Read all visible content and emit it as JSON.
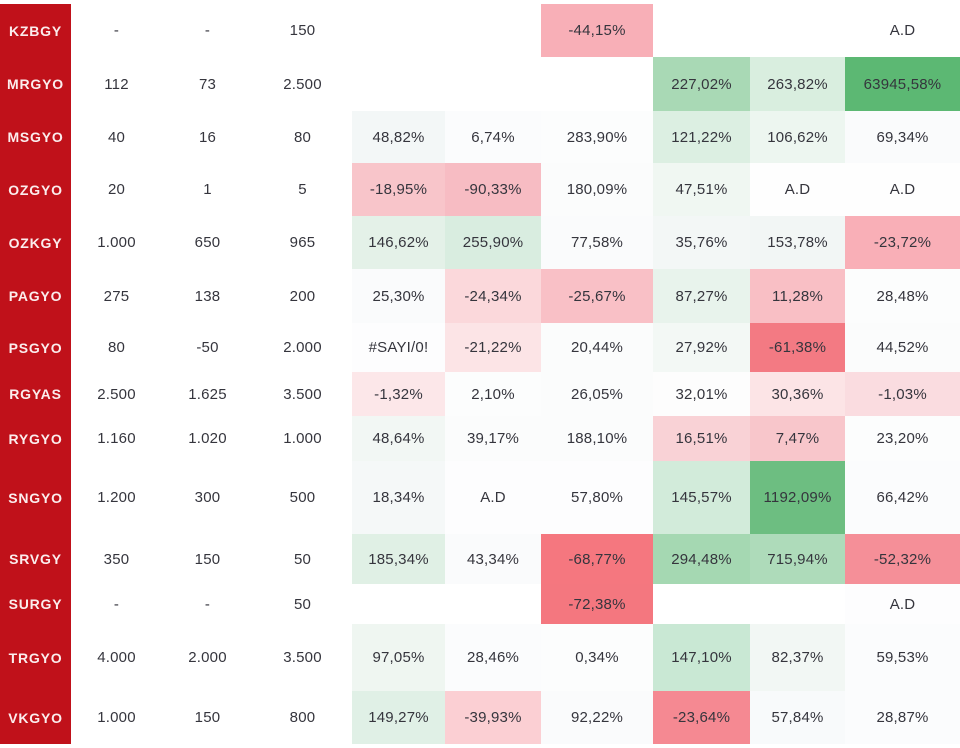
{
  "colors": {
    "ticker_bg": "#C0111A",
    "ticker_text": "#FBEDED",
    "cell_text": "#35353D",
    "page_bg": "#FFFFFF",
    "positive_strong": "#5CB873",
    "negative_strong": "#F4777F"
  },
  "chart_data": {
    "type": "table",
    "subtype": "heatmap-conditional-formatting",
    "grid": false,
    "legend": "none",
    "ticker_column": [
      "KZBGY",
      "MRGYO",
      "MSGYO",
      "OZGYO",
      "OZKGY",
      "PAGYO",
      "PSGYO",
      "RGYAS",
      "RYGYO",
      "SNGYO",
      "SRVGY",
      "SURGY",
      "TRGYO",
      "VKGYO"
    ],
    "rows": [
      {
        "ticker": "KZBGY",
        "cells": [
          {
            "text": "-",
            "bg": "#FFFFFF"
          },
          {
            "text": "-",
            "bg": "#FFFFFF"
          },
          {
            "text": "150",
            "bg": "#FFFFFF"
          },
          {
            "text": "",
            "bg": "#FFFFFF"
          },
          {
            "text": "",
            "bg": "#FFFFFF"
          },
          {
            "text": "-44,15%",
            "bg": "#F8AFB7"
          },
          {
            "text": "",
            "bg": "#FFFFFF"
          },
          {
            "text": "",
            "bg": "#FFFFFF"
          },
          {
            "text": "A.D",
            "bg": "#FFFFFF"
          }
        ]
      },
      {
        "ticker": "MRGYO",
        "cells": [
          {
            "text": "112",
            "bg": "#FFFFFF"
          },
          {
            "text": "73",
            "bg": "#FFFFFF"
          },
          {
            "text": "2.500",
            "bg": "#FFFFFF"
          },
          {
            "text": "",
            "bg": "#FFFFFF"
          },
          {
            "text": "",
            "bg": "#FFFFFF"
          },
          {
            "text": "",
            "bg": "#FFFFFF"
          },
          {
            "text": "227,02%",
            "bg": "#A9D9B5"
          },
          {
            "text": "263,82%",
            "bg": "#D9EEDF"
          },
          {
            "text": "63945,58%",
            "bg": "#5CB873"
          }
        ]
      },
      {
        "ticker": "MSGYO",
        "cells": [
          {
            "text": "40",
            "bg": "#FFFFFF"
          },
          {
            "text": "16",
            "bg": "#FFFFFF"
          },
          {
            "text": "80",
            "bg": "#FFFFFF"
          },
          {
            "text": "48,82%",
            "bg": "#F3F7F7"
          },
          {
            "text": "6,74%",
            "bg": "#FBFCFD"
          },
          {
            "text": "283,90%",
            "bg": "#FCFDFD"
          },
          {
            "text": "121,22%",
            "bg": "#DCEFE2"
          },
          {
            "text": "106,62%",
            "bg": "#EDF6F0"
          },
          {
            "text": "69,34%",
            "bg": "#FAFBFC"
          }
        ]
      },
      {
        "ticker": "OZGYO",
        "cells": [
          {
            "text": "20",
            "bg": "#FFFFFF"
          },
          {
            "text": "1",
            "bg": "#FFFFFF"
          },
          {
            "text": "5",
            "bg": "#FFFFFF"
          },
          {
            "text": "-18,95%",
            "bg": "#F8C5CA"
          },
          {
            "text": "-90,33%",
            "bg": "#F7BCC3"
          },
          {
            "text": "180,09%",
            "bg": "#FBFCFC"
          },
          {
            "text": "47,51%",
            "bg": "#F0F7F2"
          },
          {
            "text": "A.D",
            "bg": "#FEFEFE"
          },
          {
            "text": "A.D",
            "bg": "#FEFEFE"
          }
        ]
      },
      {
        "ticker": "OZKGY",
        "cells": [
          {
            "text": "1.000",
            "bg": "#FFFFFF"
          },
          {
            "text": "650",
            "bg": "#FFFFFF"
          },
          {
            "text": "965",
            "bg": "#FFFFFF"
          },
          {
            "text": "146,62%",
            "bg": "#E4F1E8"
          },
          {
            "text": "255,90%",
            "bg": "#D9EDE0"
          },
          {
            "text": "77,58%",
            "bg": "#FAFBFC"
          },
          {
            "text": "35,76%",
            "bg": "#F3F7F6"
          },
          {
            "text": "153,78%",
            "bg": "#F2F6F5"
          },
          {
            "text": "-23,72%",
            "bg": "#F9AFB7"
          }
        ]
      },
      {
        "ticker": "PAGYO",
        "cells": [
          {
            "text": "275",
            "bg": "#FFFFFF"
          },
          {
            "text": "138",
            "bg": "#FFFFFF"
          },
          {
            "text": "200",
            "bg": "#FFFFFF"
          },
          {
            "text": "25,30%",
            "bg": "#FAFBFC"
          },
          {
            "text": "-24,34%",
            "bg": "#FBD8DB"
          },
          {
            "text": "-25,67%",
            "bg": "#F9C0C6"
          },
          {
            "text": "87,27%",
            "bg": "#E8F3EC"
          },
          {
            "text": "11,28%",
            "bg": "#F9BFC5"
          },
          {
            "text": "28,48%",
            "bg": "#FCFDFD"
          }
        ]
      },
      {
        "ticker": "PSGYO",
        "cells": [
          {
            "text": "80",
            "bg": "#FFFFFF"
          },
          {
            "text": "-50",
            "bg": "#FFFFFF"
          },
          {
            "text": "2.000",
            "bg": "#FFFFFF"
          },
          {
            "text": "#SAYI/0!",
            "bg": "#FDFDFE"
          },
          {
            "text": "-21,22%",
            "bg": "#FCE4E6"
          },
          {
            "text": "20,44%",
            "bg": "#FBFCFC"
          },
          {
            "text": "27,92%",
            "bg": "#F3F8F5"
          },
          {
            "text": "-61,38%",
            "bg": "#F37A83"
          },
          {
            "text": "44,52%",
            "bg": "#FBFCFC"
          }
        ]
      },
      {
        "ticker": "RGYAS",
        "cells": [
          {
            "text": "2.500",
            "bg": "#FFFFFF"
          },
          {
            "text": "1.625",
            "bg": "#FFFFFF"
          },
          {
            "text": "3.500",
            "bg": "#FFFFFF"
          },
          {
            "text": "-1,32%",
            "bg": "#FCE7E9"
          },
          {
            "text": "2,10%",
            "bg": "#FCFDFD"
          },
          {
            "text": "26,05%",
            "bg": "#FBFCFC"
          },
          {
            "text": "32,01%",
            "bg": "#FDFDFD"
          },
          {
            "text": "30,36%",
            "bg": "#FCE4E6"
          },
          {
            "text": "-1,03%",
            "bg": "#FADCE0"
          }
        ]
      },
      {
        "ticker": "RYGYO",
        "cells": [
          {
            "text": "1.160",
            "bg": "#FFFFFF"
          },
          {
            "text": "1.020",
            "bg": "#FFFFFF"
          },
          {
            "text": "1.000",
            "bg": "#FFFFFF"
          },
          {
            "text": "48,64%",
            "bg": "#F2F7F4"
          },
          {
            "text": "39,17%",
            "bg": "#FBFCFC"
          },
          {
            "text": "188,10%",
            "bg": "#FBFCFC"
          },
          {
            "text": "16,51%",
            "bg": "#F9D2D6"
          },
          {
            "text": "7,47%",
            "bg": "#F8C6CB"
          },
          {
            "text": "23,20%",
            "bg": "#FCFDFD"
          }
        ]
      },
      {
        "ticker": "SNGYO",
        "cells": [
          {
            "text": "1.200",
            "bg": "#FFFFFF"
          },
          {
            "text": "300",
            "bg": "#FFFFFF"
          },
          {
            "text": "500",
            "bg": "#FFFFFF"
          },
          {
            "text": "18,34%",
            "bg": "#F5F8F8"
          },
          {
            "text": "A.D",
            "bg": "#FDFDFE"
          },
          {
            "text": "57,80%",
            "bg": "#FDFDFE"
          },
          {
            "text": "145,57%",
            "bg": "#D2EBDA"
          },
          {
            "text": "1192,09%",
            "bg": "#6DBE81"
          },
          {
            "text": "66,42%",
            "bg": "#FBFCFD"
          }
        ]
      },
      {
        "ticker": "SRVGY",
        "cells": [
          {
            "text": "350",
            "bg": "#FFFFFF"
          },
          {
            "text": "150",
            "bg": "#FFFFFF"
          },
          {
            "text": "50",
            "bg": "#FFFFFF"
          },
          {
            "text": "185,34%",
            "bg": "#E0F0E5"
          },
          {
            "text": "43,34%",
            "bg": "#FAFBFC"
          },
          {
            "text": "-68,77%",
            "bg": "#F5777F"
          },
          {
            "text": "294,48%",
            "bg": "#A5D8B2"
          },
          {
            "text": "715,94%",
            "bg": "#AEDBBA"
          },
          {
            "text": "-52,32%",
            "bg": "#F58F98"
          }
        ]
      },
      {
        "ticker": "SURGY",
        "cells": [
          {
            "text": "-",
            "bg": "#FFFFFF"
          },
          {
            "text": "-",
            "bg": "#FFFFFF"
          },
          {
            "text": "50",
            "bg": "#FFFFFF"
          },
          {
            "text": "",
            "bg": "#FFFFFF"
          },
          {
            "text": "",
            "bg": "#FFFFFF"
          },
          {
            "text": "-72,38%",
            "bg": "#F4777F"
          },
          {
            "text": "",
            "bg": "#FFFFFF"
          },
          {
            "text": "",
            "bg": "#FFFFFF"
          },
          {
            "text": "A.D",
            "bg": "#FDFDFE"
          }
        ]
      },
      {
        "ticker": "TRGYO",
        "cells": [
          {
            "text": "4.000",
            "bg": "#FFFFFF"
          },
          {
            "text": "2.000",
            "bg": "#FFFFFF"
          },
          {
            "text": "3.500",
            "bg": "#FFFFFF"
          },
          {
            "text": "97,05%",
            "bg": "#EFF6F1"
          },
          {
            "text": "28,46%",
            "bg": "#FBFCFD"
          },
          {
            "text": "0,34%",
            "bg": "#FCFDFD"
          },
          {
            "text": "147,10%",
            "bg": "#C9E8D4"
          },
          {
            "text": "82,37%",
            "bg": "#F2F7F4"
          },
          {
            "text": "59,53%",
            "bg": "#FBFCFD"
          }
        ]
      },
      {
        "ticker": "VKGYO",
        "cells": [
          {
            "text": "1.000",
            "bg": "#FFFFFF"
          },
          {
            "text": "150",
            "bg": "#FFFFFF"
          },
          {
            "text": "800",
            "bg": "#FFFFFF"
          },
          {
            "text": "149,27%",
            "bg": "#E0F0E6"
          },
          {
            "text": "-39,93%",
            "bg": "#FBCFD3"
          },
          {
            "text": "92,22%",
            "bg": "#FAFBFC"
          },
          {
            "text": "-23,64%",
            "bg": "#F58992"
          },
          {
            "text": "57,84%",
            "bg": "#F8FAFB"
          },
          {
            "text": "28,87%",
            "bg": "#FBFCFD"
          }
        ]
      }
    ]
  }
}
